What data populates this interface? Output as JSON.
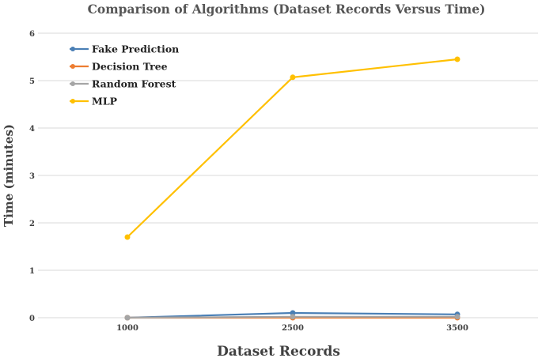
{
  "chart_data": {
    "type": "line",
    "title": "Comparison of Algorithms (Dataset Records Versus Time)",
    "xlabel": "Dataset Records",
    "ylabel": "Time (minutes)",
    "categories": [
      "1000",
      "2500",
      "3500"
    ],
    "ylim": [
      0,
      6
    ],
    "yticks": [
      "0",
      "1",
      "2",
      "3",
      "4",
      "5",
      "6"
    ],
    "grid": true,
    "legend_position": "top-left",
    "series": [
      {
        "name": "Fake Prediction",
        "color": "#4a7fb5",
        "values": [
          0.0,
          0.1,
          0.07
        ]
      },
      {
        "name": "Decision Tree",
        "color": "#ed7d31",
        "values": [
          0.0,
          0.0,
          0.0
        ]
      },
      {
        "name": "Random Forest",
        "color": "#a5a5a5",
        "values": [
          0.0,
          0.02,
          0.02
        ]
      },
      {
        "name": "MLP",
        "color": "#ffc000",
        "values": [
          1.7,
          5.07,
          5.45
        ]
      }
    ]
  }
}
